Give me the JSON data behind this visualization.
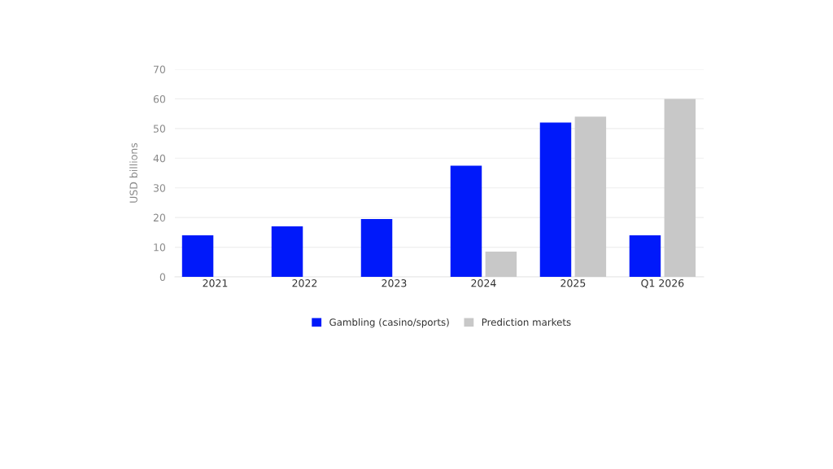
{
  "chart_data": {
    "type": "bar",
    "ylabel": "USD billions",
    "categories": [
      "2021",
      "2022",
      "2023",
      "2024",
      "2025",
      "Q1 2026"
    ],
    "series": [
      {
        "name": "Gambling (casino/sports)",
        "color": "#0019fa",
        "values": [
          14,
          17,
          19.5,
          37.5,
          52,
          14
        ]
      },
      {
        "name": "Prediction markets",
        "color": "#c8c8c8",
        "values": [
          null,
          null,
          null,
          8.5,
          54,
          60
        ]
      }
    ],
    "ylim": [
      0,
      70
    ],
    "yticks": [
      0,
      10,
      20,
      30,
      40,
      50,
      60,
      70
    ],
    "grid": "y",
    "legend": "bottom"
  }
}
